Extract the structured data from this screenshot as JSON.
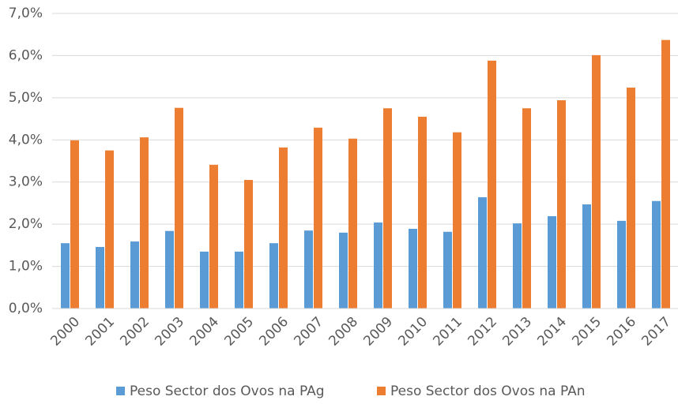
{
  "chart_data": {
    "type": "bar",
    "categories": [
      "2000",
      "2001",
      "2002",
      "2003",
      "2004",
      "2005",
      "2006",
      "2007",
      "2008",
      "2009",
      "2010",
      "2011",
      "2012",
      "2013",
      "2014",
      "2015",
      "2016",
      "2017"
    ],
    "series": [
      {
        "name": "Peso Sector dos Ovos na PAg",
        "color": "#5b9bd5",
        "values": [
          1.55,
          1.46,
          1.59,
          1.84,
          1.35,
          1.35,
          1.55,
          1.85,
          1.8,
          2.04,
          1.89,
          1.82,
          2.64,
          2.02,
          2.19,
          2.47,
          2.08,
          2.55
        ]
      },
      {
        "name": "Peso Sector dos Ovos na PAn",
        "color": "#ed7d31",
        "values": [
          3.99,
          3.75,
          4.06,
          4.76,
          3.41,
          3.05,
          3.82,
          4.29,
          4.03,
          4.75,
          4.55,
          4.18,
          5.88,
          4.75,
          4.94,
          6.01,
          5.24,
          6.37
        ]
      }
    ],
    "ylim": [
      0,
      7
    ],
    "yticks": [
      {
        "value": 0,
        "label": "0,0%"
      },
      {
        "value": 1,
        "label": "1,0%"
      },
      {
        "value": 2,
        "label": "2,0%"
      },
      {
        "value": 3,
        "label": "3,0%"
      },
      {
        "value": 4,
        "label": "4,0%"
      },
      {
        "value": 5,
        "label": "5,0%"
      },
      {
        "value": 6,
        "label": "6,0%"
      },
      {
        "value": 7,
        "label": "7,0%"
      }
    ],
    "grid": true,
    "legend": "bottom"
  }
}
